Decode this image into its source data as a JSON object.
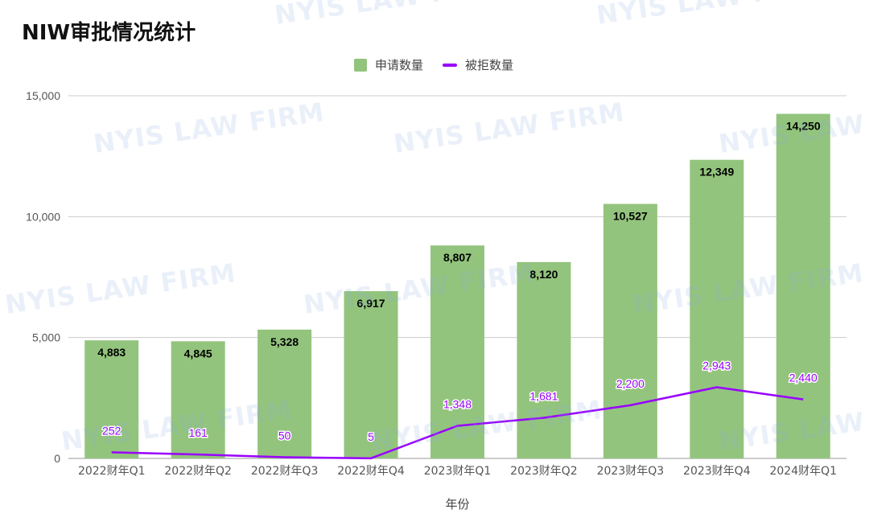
{
  "title": "NIW审批情况统计",
  "watermark_text": "NYIS LAW FIRM",
  "colors": {
    "bar": "#93c47d",
    "line": "#9900ff",
    "line_label": "#9900ff",
    "grid": "#cccccc",
    "axis_text": "#555555"
  },
  "chart_data": {
    "type": "bar",
    "categories": [
      "2022财年Q1",
      "2022财年Q2",
      "2022财年Q3",
      "2022财年Q4",
      "2023财年Q1",
      "2023财年Q2",
      "2023财年Q3",
      "2023财年Q4",
      "2024财年Q1"
    ],
    "series": [
      {
        "name": "申请数量",
        "type": "bar",
        "values": [
          4883,
          4845,
          5328,
          6917,
          8807,
          8120,
          10527,
          12349,
          14250
        ]
      },
      {
        "name": "被拒数量",
        "type": "line",
        "values": [
          252,
          161,
          50,
          5,
          1348,
          1681,
          2200,
          2943,
          2440
        ]
      }
    ],
    "title": "NIW审批情况统计",
    "xlabel": "年份",
    "ylabel": "",
    "ylim": [
      0,
      15000
    ],
    "yticks": [
      0,
      5000,
      10000,
      15000
    ],
    "ytick_labels": [
      "0",
      "5,000",
      "10,000",
      "15,000"
    ],
    "bar_value_labels": [
      "4,883",
      "4,845",
      "5,328",
      "6,917",
      "8,807",
      "8,120",
      "10,527",
      "12,349",
      "14,250"
    ],
    "line_value_labels": [
      "252",
      "161",
      "50",
      "5",
      "1,348",
      "1,681",
      "2,200",
      "2,943",
      "2,440"
    ],
    "grid": true,
    "legend_placement": "top-center"
  }
}
